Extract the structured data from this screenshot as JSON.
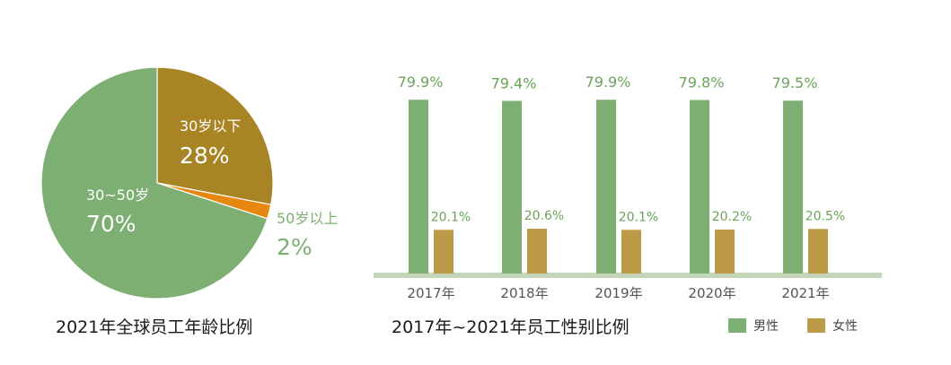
{
  "charts": {
    "pie": {
      "caption": "2021年全球员工年龄比例"
    },
    "bar": {
      "caption": "2017年~2021年员工性别比例"
    }
  },
  "chart_data": [
    {
      "type": "pie",
      "title": "2021年全球员工年龄比例",
      "slices": [
        {
          "label": "30岁以下",
          "value": 28,
          "display": "28%",
          "color": "#a98424"
        },
        {
          "label": "50岁以上",
          "value": 2,
          "display": "2%",
          "color": "#e8870f"
        },
        {
          "label": "30~50岁",
          "value": 70,
          "display": "70%",
          "color": "#7daf73"
        }
      ],
      "label_colors": {
        "inside": "#ffffff",
        "outside": "#7daf73"
      }
    },
    {
      "type": "bar",
      "title": "2017年~2021年员工性别比例",
      "categories": [
        "2017年",
        "2018年",
        "2019年",
        "2020年",
        "2021年"
      ],
      "series": [
        {
          "name": "男性",
          "color": "#7daf73",
          "values": [
            79.9,
            79.4,
            79.9,
            79.8,
            79.5
          ],
          "labels": [
            "79.9%",
            "79.4%",
            "79.9%",
            "79.8%",
            "79.5%"
          ]
        },
        {
          "name": "女性",
          "color": "#bd9a47",
          "values": [
            20.1,
            20.6,
            20.1,
            20.2,
            20.5
          ],
          "labels": [
            "20.1%",
            "20.6%",
            "20.1%",
            "20.2%",
            "20.5%"
          ]
        }
      ],
      "ylim": [
        0,
        80
      ],
      "grid": false,
      "baseline_color": "#c5d5b9",
      "tick_label_color": "#555555",
      "data_label_color": "#6aa35a",
      "legend_position": "bottom-right"
    }
  ]
}
